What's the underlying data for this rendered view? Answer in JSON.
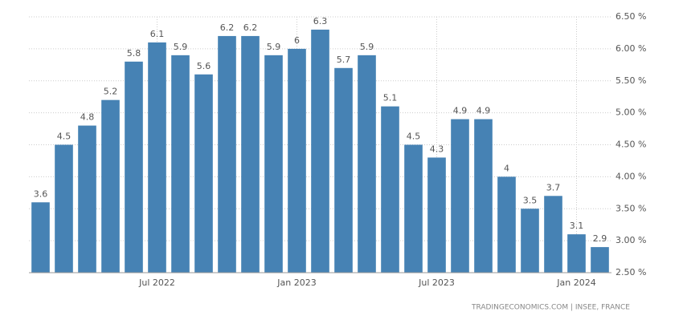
{
  "chart_data": {
    "type": "bar",
    "categories": [
      null,
      null,
      null,
      null,
      null,
      "Jul 2022",
      null,
      null,
      null,
      null,
      null,
      "Jan 2023",
      null,
      null,
      null,
      null,
      null,
      "Jul 2023",
      null,
      null,
      null,
      null,
      null,
      "Jan 2024",
      null
    ],
    "values": [
      3.6,
      4.5,
      4.8,
      5.2,
      5.8,
      6.1,
      5.9,
      5.6,
      6.2,
      6.2,
      5.9,
      6,
      6.3,
      5.7,
      5.9,
      5.1,
      4.5,
      4.3,
      4.9,
      4.9,
      4,
      3.5,
      3.7,
      3.1,
      2.9
    ],
    "color": "#4682b4",
    "ylim": [
      2.5,
      6.5
    ],
    "yticks": [
      {
        "value": 2.5,
        "label": "2.50 %"
      },
      {
        "value": 3,
        "label": "3.00 %"
      },
      {
        "value": 3.5,
        "label": "3.50 %"
      },
      {
        "value": 4,
        "label": "4.00 %"
      },
      {
        "value": 4.5,
        "label": "4.50 %"
      },
      {
        "value": 5,
        "label": "5.00 %"
      },
      {
        "value": 5.5,
        "label": "5.50 %"
      },
      {
        "value": 6,
        "label": "6.00 %"
      },
      {
        "value": 6.5,
        "label": "6.50 %"
      }
    ],
    "grid": true,
    "source": "TRADINGECONOMICS.COM | INSEE, FRANCE"
  }
}
